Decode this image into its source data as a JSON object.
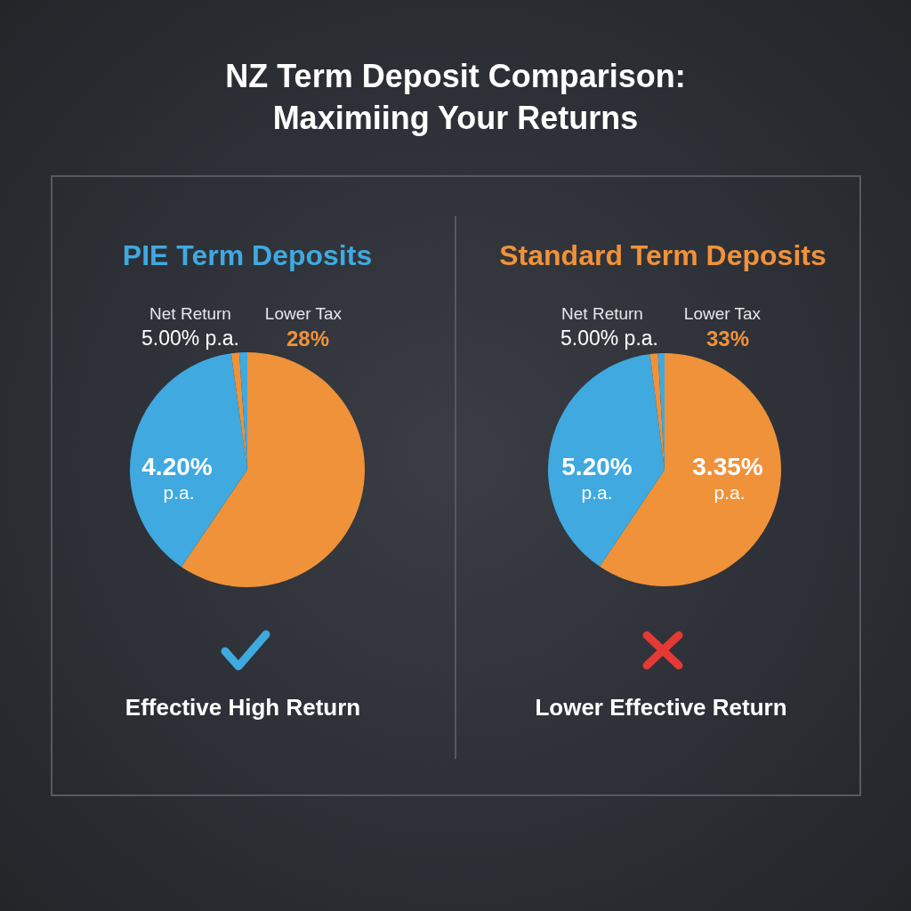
{
  "chart_data": [
    {
      "type": "other",
      "title": "NZ Term Deposit Comparison: Maximiing Your Returns"
    },
    {
      "type": "pie",
      "title": "PIE Term Deposits",
      "categories": [
        null,
        null,
        null,
        null
      ],
      "values": [
        59.5,
        38.3,
        1.1,
        1.1
      ],
      "colors": [
        "#f0923a",
        "#3fa9e0",
        "#f0923a",
        "#3fa9e0"
      ],
      "annotations": [
        "Net Return",
        "5.00% p.a.",
        "Lower Tax",
        "28%",
        "4.20%",
        "p.a.",
        "Effective High Return"
      ]
    },
    {
      "type": "pie",
      "title": "Standard Term Deposits",
      "categories": [
        null,
        null,
        null,
        null
      ],
      "values": [
        59.4,
        38.6,
        1.1,
        0.9
      ],
      "colors": [
        "#f0923a",
        "#3fa9e0",
        "#f0923a",
        "#3fa9e0"
      ],
      "annotations": [
        "Net Return",
        "5.00% p.a.",
        "Lower Tax",
        "33%",
        "5.20%",
        "p.a.",
        "3.35%",
        "p.a.",
        "Lower Effective Return"
      ]
    }
  ]
}
